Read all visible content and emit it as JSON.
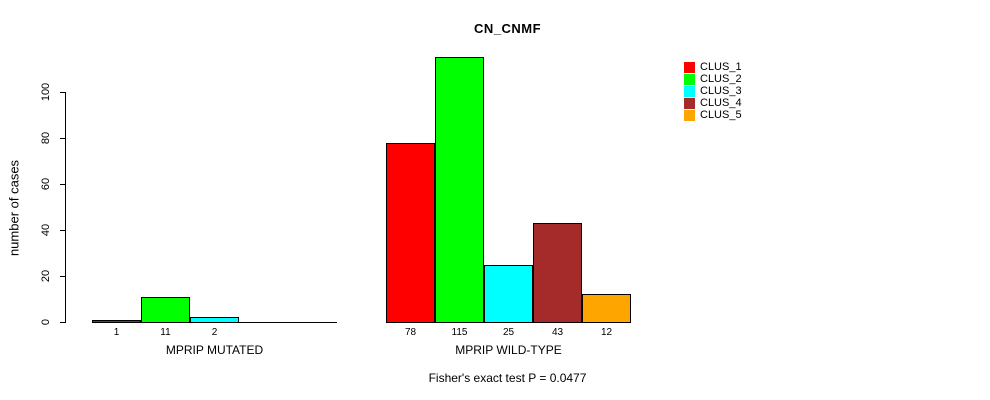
{
  "chart_data": {
    "type": "bar",
    "title": "CN_CNMF",
    "ylabel": "number of cases",
    "ylim": [
      0,
      115
    ],
    "yticks": [
      0,
      20,
      40,
      60,
      80,
      100
    ],
    "grid": false,
    "legend_position": "right",
    "legend": [
      {
        "label": "CLUS_1",
        "color": "#FF0000"
      },
      {
        "label": "CLUS_2",
        "color": "#00FF00"
      },
      {
        "label": "CLUS_3",
        "color": "#00FFFF"
      },
      {
        "label": "CLUS_4",
        "color": "#A52A2A"
      },
      {
        "label": "CLUS_5",
        "color": "#FFA500"
      }
    ],
    "groups": [
      {
        "label": "MPRIP MUTATED",
        "slots": 5,
        "bars": [
          {
            "cluster": "CLUS_1",
            "value": 1
          },
          {
            "cluster": "CLUS_2",
            "value": 11
          },
          {
            "cluster": "CLUS_3",
            "value": 2
          }
        ]
      },
      {
        "label": "MPRIP WILD-TYPE",
        "slots": 5,
        "bars": [
          {
            "cluster": "CLUS_1",
            "value": 78
          },
          {
            "cluster": "CLUS_2",
            "value": 115
          },
          {
            "cluster": "CLUS_3",
            "value": 25
          },
          {
            "cluster": "CLUS_4",
            "value": 43
          },
          {
            "cluster": "CLUS_5",
            "value": 12
          }
        ]
      }
    ],
    "footnote": "Fisher's exact test P = 0.0477",
    "axis_color": "#000000",
    "background": "#FFFFFF"
  }
}
